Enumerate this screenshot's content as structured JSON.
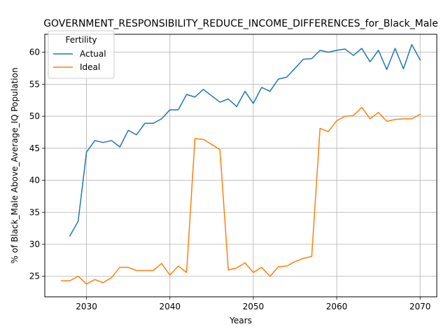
{
  "chart_data": {
    "type": "line",
    "title": "GOVERNMENT_RESPONSIBILITY_REDUCE_INCOME_DIFFERENCES_for_Black_Male",
    "xlabel": "Years",
    "ylabel": "% of Black_Male Above_Average_IQ Population",
    "xlim": [
      2025,
      2072
    ],
    "ylim": [
      21.8,
      62.8
    ],
    "xticks": [
      2030,
      2040,
      2050,
      2060,
      2070
    ],
    "yticks": [
      25,
      30,
      35,
      40,
      45,
      50,
      55,
      60
    ],
    "grid": true,
    "legend": {
      "title": "Fertility",
      "placement": "top-left"
    },
    "series": [
      {
        "name": "Actual",
        "color": "#1f77b4",
        "x": [
          2028,
          2029,
          2030,
          2031,
          2032,
          2033,
          2034,
          2035,
          2036,
          2037,
          2038,
          2039,
          2040,
          2041,
          2042,
          2043,
          2044,
          2045,
          2046,
          2047,
          2048,
          2049,
          2050,
          2051,
          2052,
          2053,
          2054,
          2055,
          2056,
          2057,
          2058,
          2059,
          2060,
          2061,
          2062,
          2063,
          2064,
          2065,
          2066,
          2067,
          2068,
          2069,
          2070
        ],
        "values": [
          31.3,
          33.6,
          44.4,
          46.2,
          45.9,
          46.2,
          45.2,
          47.8,
          47.1,
          48.9,
          48.9,
          49.6,
          51.0,
          51.0,
          53.4,
          53.0,
          54.2,
          53.2,
          52.2,
          52.7,
          51.5,
          53.9,
          52.0,
          54.5,
          53.9,
          55.8,
          56.1,
          57.5,
          58.9,
          59.0,
          60.3,
          60.0,
          60.3,
          60.5,
          59.5,
          60.6,
          58.5,
          60.3,
          57.3,
          60.6,
          57.4,
          61.2,
          58.8
        ]
      },
      {
        "name": "Ideal",
        "color": "#ff7f0e",
        "x": [
          2027,
          2028,
          2029,
          2030,
          2031,
          2032,
          2033,
          2034,
          2035,
          2036,
          2037,
          2038,
          2039,
          2040,
          2041,
          2042,
          2043,
          2044,
          2045,
          2046,
          2047,
          2048,
          2049,
          2050,
          2051,
          2052,
          2053,
          2054,
          2055,
          2056,
          2057,
          2058,
          2059,
          2060,
          2061,
          2062,
          2063,
          2064,
          2065,
          2066,
          2067,
          2068,
          2069,
          2070
        ],
        "values": [
          24.3,
          24.3,
          25.0,
          23.8,
          24.5,
          24.0,
          24.8,
          26.4,
          26.4,
          25.9,
          25.9,
          25.9,
          27.0,
          25.2,
          26.6,
          25.6,
          46.5,
          46.4,
          45.6,
          44.8,
          26.0,
          26.3,
          27.1,
          25.6,
          26.4,
          25.0,
          26.5,
          26.6,
          27.3,
          27.8,
          28.1,
          48.1,
          47.6,
          49.3,
          50.0,
          50.1,
          51.4,
          49.6,
          50.6,
          49.2,
          49.5,
          49.6,
          49.6,
          50.3
        ]
      }
    ]
  }
}
